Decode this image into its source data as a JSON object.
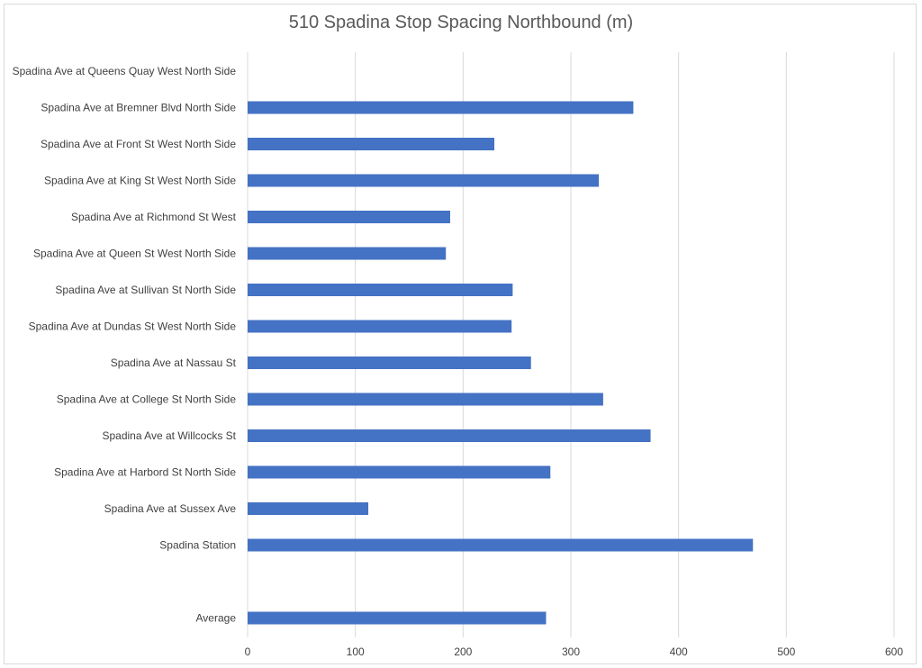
{
  "chart_data": {
    "type": "bar",
    "orientation": "horizontal",
    "title": "510 Spadina Stop Spacing Northbound (m)",
    "xlabel": "",
    "ylabel": "",
    "xlim": [
      0,
      600
    ],
    "xticks": [
      0,
      100,
      200,
      300,
      400,
      500,
      600
    ],
    "grid": true,
    "legend": "none",
    "bar_color": "#4472c4",
    "categories": [
      "Spadina Ave at Queens Quay West North Side",
      "Spadina Ave at Bremner Blvd North Side",
      "Spadina Ave at Front St West North Side",
      "Spadina Ave at King St West North Side",
      "Spadina Ave at Richmond St West",
      "Spadina Ave at Queen St West North Side",
      "Spadina Ave at Sullivan St North Side",
      "Spadina Ave at Dundas St West North Side",
      "Spadina Ave at Nassau St",
      "Spadina Ave at College St North Side",
      "Spadina Ave at Willcocks St",
      "Spadina Ave at Harbord St North Side",
      "Spadina Ave at Sussex Ave",
      "Spadina Station",
      "",
      "Average"
    ],
    "values": [
      null,
      358,
      229,
      326,
      188,
      184,
      246,
      245,
      263,
      330,
      374,
      281,
      112,
      469,
      null,
      277
    ]
  }
}
